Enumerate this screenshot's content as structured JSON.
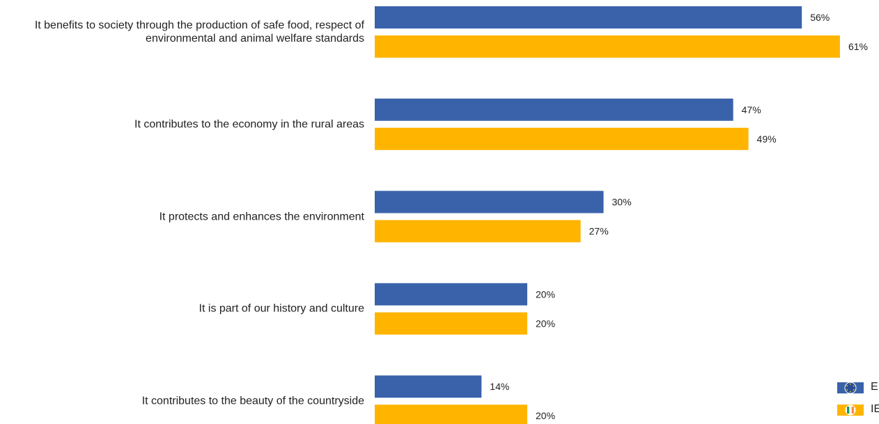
{
  "chart_data": {
    "type": "bar",
    "orientation": "horizontal",
    "categories": [
      "It benefits to society through the production of safe food, respect of environmental and animal welfare standards",
      "It contributes to the economy in the rural areas",
      "It protects and enhances the environment",
      "It is part of our history and culture",
      "It contributes to the beauty of the countryside"
    ],
    "category_lines": [
      [
        "It benefits to society through the production of safe food, respect of",
        "environmental and animal welfare standards"
      ],
      [
        "It contributes to the economy in the rural areas"
      ],
      [
        "It protects and enhances the environment"
      ],
      [
        "It is part of our history and culture"
      ],
      [
        "It contributes to the beauty of the countryside"
      ]
    ],
    "series": [
      {
        "name": "E",
        "color": "#3a62ab",
        "values": [
          56,
          47,
          30,
          20,
          14
        ],
        "labels": [
          "56%",
          "47%",
          "30%",
          "20%",
          "14%"
        ]
      },
      {
        "name": "IE",
        "color": "#ffb500",
        "values": [
          61,
          49,
          27,
          20,
          20
        ],
        "labels": [
          "61%",
          "49%",
          "27%",
          "20%",
          "20%"
        ]
      }
    ],
    "value_unit": "%",
    "grid": false,
    "legend_position": "bottom-right"
  },
  "legend": {
    "items": [
      {
        "label": "E",
        "icon": "eu-flag-icon"
      },
      {
        "label": "IE",
        "icon": "ireland-flag-icon"
      }
    ]
  }
}
